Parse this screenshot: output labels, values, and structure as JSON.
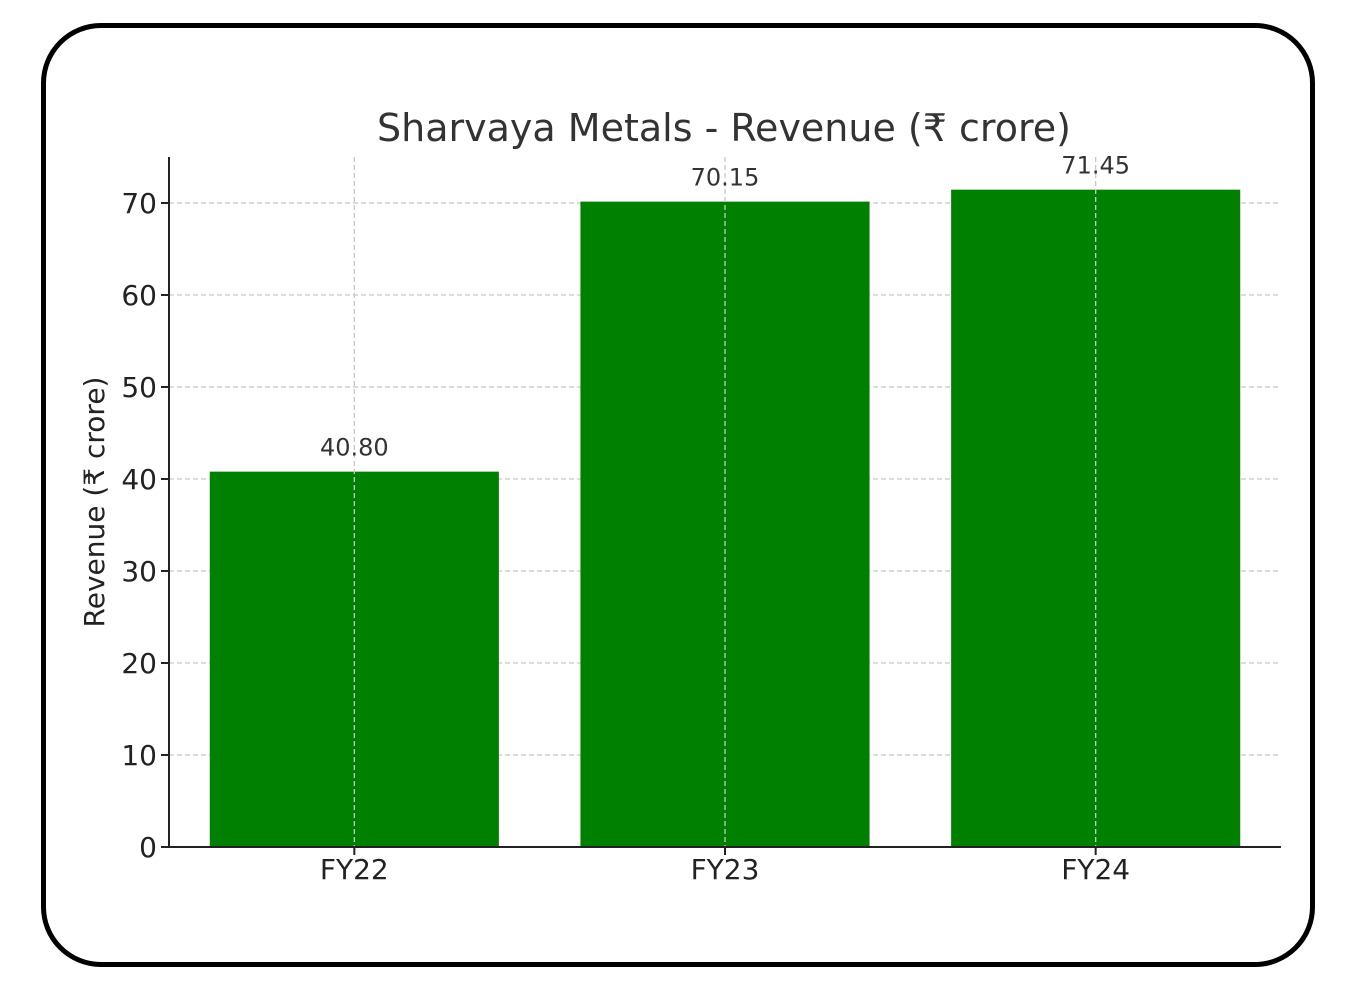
{
  "chart_data": {
    "type": "bar",
    "title": "Sharvaya Metals - Revenue (₹ crore)",
    "xlabel": "",
    "ylabel": "Revenue (₹ crore)",
    "categories": [
      "FY22",
      "FY23",
      "FY24"
    ],
    "values": [
      40.8,
      70.15,
      71.45
    ],
    "value_labels": [
      "40.80",
      "70.15",
      "71.45"
    ],
    "ylim": [
      0,
      75
    ],
    "yticks": [
      0,
      10,
      20,
      30,
      40,
      50,
      60,
      70
    ],
    "grid": true,
    "bar_color": "#008000"
  }
}
